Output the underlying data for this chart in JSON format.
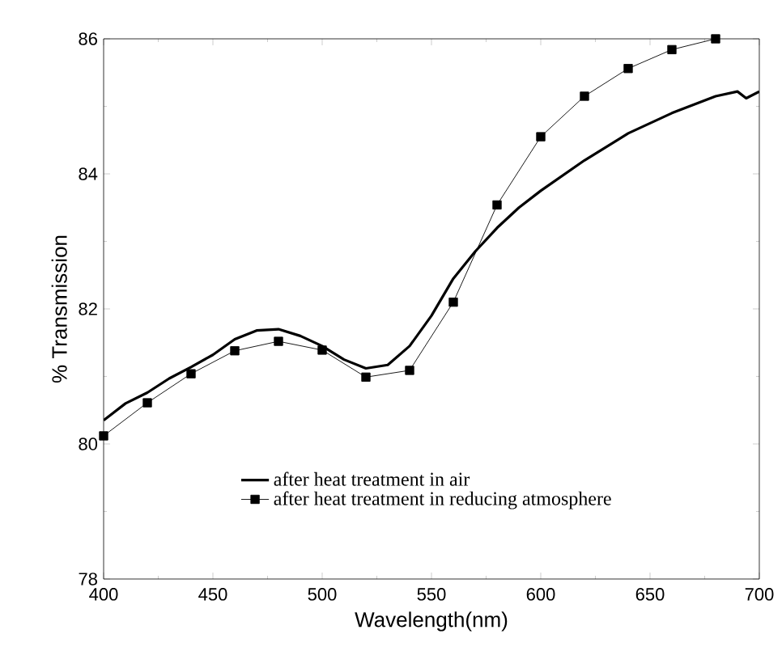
{
  "chart_data": {
    "type": "line",
    "xlabel": "Wavelength(nm)",
    "ylabel": "% Transmission",
    "xlim": [
      400,
      700
    ],
    "ylim": [
      78,
      86
    ],
    "xticks": [
      400,
      450,
      500,
      550,
      600,
      650,
      700
    ],
    "yticks": [
      78,
      80,
      82,
      84,
      86
    ],
    "legend": "bottom",
    "grid": false,
    "series": [
      {
        "name": "after heat treatment in air",
        "color": "#000000",
        "marker": "none",
        "x": [
          400,
          410,
          420,
          430,
          440,
          450,
          460,
          470,
          480,
          490,
          500,
          510,
          520,
          530,
          540,
          550,
          560,
          570,
          580,
          590,
          600,
          620,
          640,
          660,
          680,
          690,
          694,
          700
        ],
        "values": [
          80.35,
          80.6,
          80.76,
          80.97,
          81.14,
          81.32,
          81.55,
          81.68,
          81.7,
          81.6,
          81.45,
          81.25,
          81.12,
          81.17,
          81.45,
          81.9,
          82.45,
          82.85,
          83.2,
          83.5,
          83.75,
          84.2,
          84.6,
          84.9,
          85.15,
          85.22,
          85.12,
          85.22
        ]
      },
      {
        "name": "after heat treatment in reducing atmosphere",
        "color": "#000000",
        "marker": "square",
        "x": [
          400,
          420,
          440,
          460,
          480,
          500,
          520,
          540,
          560,
          580,
          600,
          620,
          640,
          660,
          680
        ],
        "values": [
          80.12,
          80.61,
          81.04,
          81.38,
          81.52,
          81.39,
          80.99,
          81.09,
          82.1,
          83.54,
          84.55,
          85.15,
          85.56,
          85.84,
          86.0
        ]
      }
    ]
  }
}
